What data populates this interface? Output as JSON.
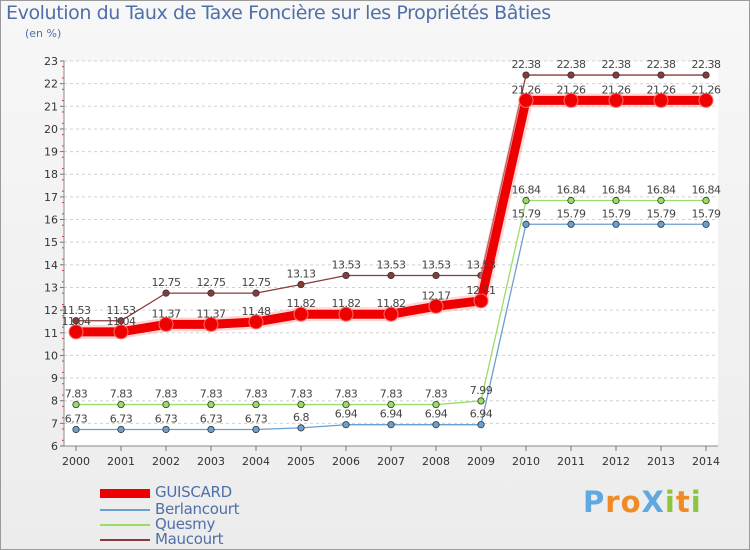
{
  "chart_data": {
    "type": "line",
    "title": "Evolution du Taux de Taxe Foncière sur les Propriétés Bâties",
    "unit_label": "(en %)",
    "xlabel": "",
    "ylabel": "(en %)",
    "ylim": [
      6,
      23
    ],
    "yticks": [
      "6",
      "7",
      "8",
      "9",
      "10",
      "11",
      "12",
      "13",
      "14",
      "15",
      "16",
      "17",
      "18",
      "19",
      "20",
      "21",
      "22",
      "23"
    ],
    "categories": [
      "2000",
      "2001",
      "2002",
      "2003",
      "2004",
      "2005",
      "2006",
      "2007",
      "2008",
      "2009",
      "2010",
      "2011",
      "2012",
      "2013",
      "2014"
    ],
    "series": [
      {
        "name": "GUISCARD",
        "color": "#ee0000",
        "values": [
          11.04,
          11.04,
          11.37,
          11.37,
          11.48,
          11.82,
          11.82,
          11.82,
          12.17,
          12.41,
          21.26,
          21.26,
          21.26,
          21.26,
          21.26
        ],
        "labels": [
          "11.04",
          "11.04",
          "11.37",
          "11.37",
          "11.48",
          "11.82",
          "11.82",
          "11.82",
          "12.17",
          "12.41",
          "21.26",
          "21.26",
          "21.26",
          "21.26",
          "21.26"
        ]
      },
      {
        "name": "Berlancourt",
        "color": "#6a9fd0",
        "values": [
          6.73,
          6.73,
          6.73,
          6.73,
          6.73,
          6.8,
          6.94,
          6.94,
          6.94,
          6.94,
          15.79,
          15.79,
          15.79,
          15.79,
          15.79
        ],
        "labels": [
          "6.73",
          "6.73",
          "6.73",
          "6.73",
          "6.73",
          "6.8",
          "6.94",
          "6.94",
          "6.94",
          "6.94",
          "15.79",
          "15.79",
          "15.79",
          "15.79",
          "15.79"
        ]
      },
      {
        "name": "Quesmy",
        "color": "#99dd66",
        "values": [
          7.83,
          7.83,
          7.83,
          7.83,
          7.83,
          7.83,
          7.83,
          7.83,
          7.83,
          7.99,
          16.84,
          16.84,
          16.84,
          16.84,
          16.84
        ],
        "labels": [
          "7.83",
          "7.83",
          "7.83",
          "7.83",
          "7.83",
          "7.83",
          "7.83",
          "7.83",
          "7.83",
          "7.99",
          "16.84",
          "16.84",
          "16.84",
          "16.84",
          "16.84"
        ]
      },
      {
        "name": "Maucourt",
        "color": "#8b3a3a",
        "values": [
          11.53,
          11.53,
          12.75,
          12.75,
          12.75,
          13.13,
          13.53,
          13.53,
          13.53,
          13.53,
          22.38,
          22.38,
          22.38,
          22.38,
          22.38
        ],
        "labels": [
          "11.53",
          "11.53",
          "12.75",
          "12.75",
          "12.75",
          "13.13",
          "13.53",
          "13.53",
          "13.53",
          "13.53",
          "22.38",
          "22.38",
          "22.38",
          "22.38",
          "22.38"
        ]
      }
    ],
    "legend": [
      "GUISCARD",
      "Berlancourt",
      "Quesmy",
      "Maucourt"
    ],
    "legend_position": "bottom-left",
    "grid": "dashed-horizontal"
  },
  "logo": {
    "text": "ProXiti",
    "letters": [
      "P",
      "r",
      "o",
      "X",
      "i",
      "t",
      "i"
    ],
    "colors": [
      "#5fa8e0",
      "#f08a24",
      "#f08a24",
      "#5fa8e0",
      "#8cc63f",
      "#f08a24",
      "#8cc63f"
    ]
  }
}
